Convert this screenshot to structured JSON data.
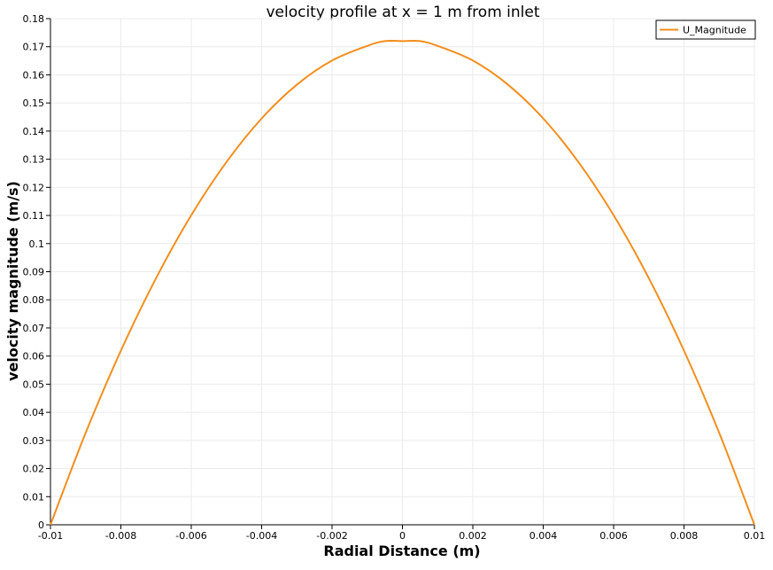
{
  "chart_data": {
    "type": "line",
    "title": "velocity profile at x = 1 m from inlet",
    "xlabel": "Radial Distance (m)",
    "ylabel": "velocity magnitude (m/s)",
    "xlim": [
      -0.01,
      0.01
    ],
    "ylim": [
      0,
      0.18
    ],
    "x_ticks": [
      "-0.01",
      "-0.008",
      "-0.006",
      "-0.004",
      "-0.002",
      "0",
      "0.002",
      "0.004",
      "0.006",
      "0.008",
      "0.01"
    ],
    "y_ticks": [
      "0",
      "0.01",
      "0.02",
      "0.03",
      "0.04",
      "0.05",
      "0.06",
      "0.07",
      "0.08",
      "0.09",
      "0.1",
      "0.11",
      "0.12",
      "0.13",
      "0.14",
      "0.15",
      "0.16",
      "0.17",
      "0.18"
    ],
    "grid": true,
    "legend_position": "top-right",
    "series": [
      {
        "name": "U_Magnitude",
        "color": "#f28e1c",
        "x": [
          -0.01,
          -0.009,
          -0.008,
          -0.007,
          -0.006,
          -0.005,
          -0.004,
          -0.003,
          -0.002,
          -0.001,
          -0.0005,
          0,
          0.0005,
          0.001,
          0.002,
          0.003,
          0.004,
          0.005,
          0.006,
          0.007,
          0.008,
          0.009,
          0.01
        ],
        "y": [
          0.0,
          0.0327,
          0.0619,
          0.0877,
          0.1101,
          0.129,
          0.1445,
          0.1565,
          0.1651,
          0.1703,
          0.172,
          0.172,
          0.172,
          0.1703,
          0.1651,
          0.1565,
          0.1445,
          0.129,
          0.1101,
          0.0877,
          0.0619,
          0.0327,
          0.0
        ]
      }
    ]
  }
}
